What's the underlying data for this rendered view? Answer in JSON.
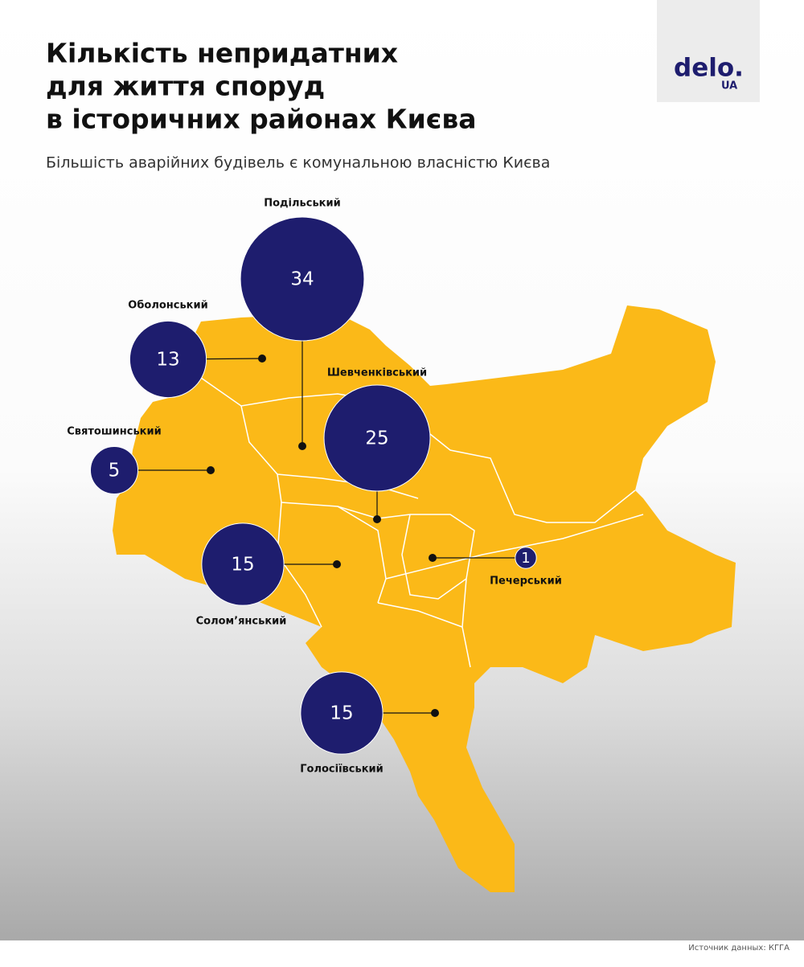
{
  "header": {
    "title_lines": [
      "Кількість непридатних",
      "для життя споруд",
      "в історичних районах Києва"
    ],
    "subtitle": "Більшість аварійних будівель є комунальною власністю Києва"
  },
  "logo": {
    "text": "delo.",
    "suffix": "UA"
  },
  "districts": [
    {
      "name": "Подільський",
      "value": 34
    },
    {
      "name": "Оболонський",
      "value": 13
    },
    {
      "name": "Шевченківський",
      "value": 25
    },
    {
      "name": "Святошинський",
      "value": 5
    },
    {
      "name": "Солом’янський",
      "value": 15
    },
    {
      "name": "Печерський",
      "value": 1
    },
    {
      "name": "Голосіївський",
      "value": 15
    }
  ],
  "source": "Источник данных: КГГА"
}
